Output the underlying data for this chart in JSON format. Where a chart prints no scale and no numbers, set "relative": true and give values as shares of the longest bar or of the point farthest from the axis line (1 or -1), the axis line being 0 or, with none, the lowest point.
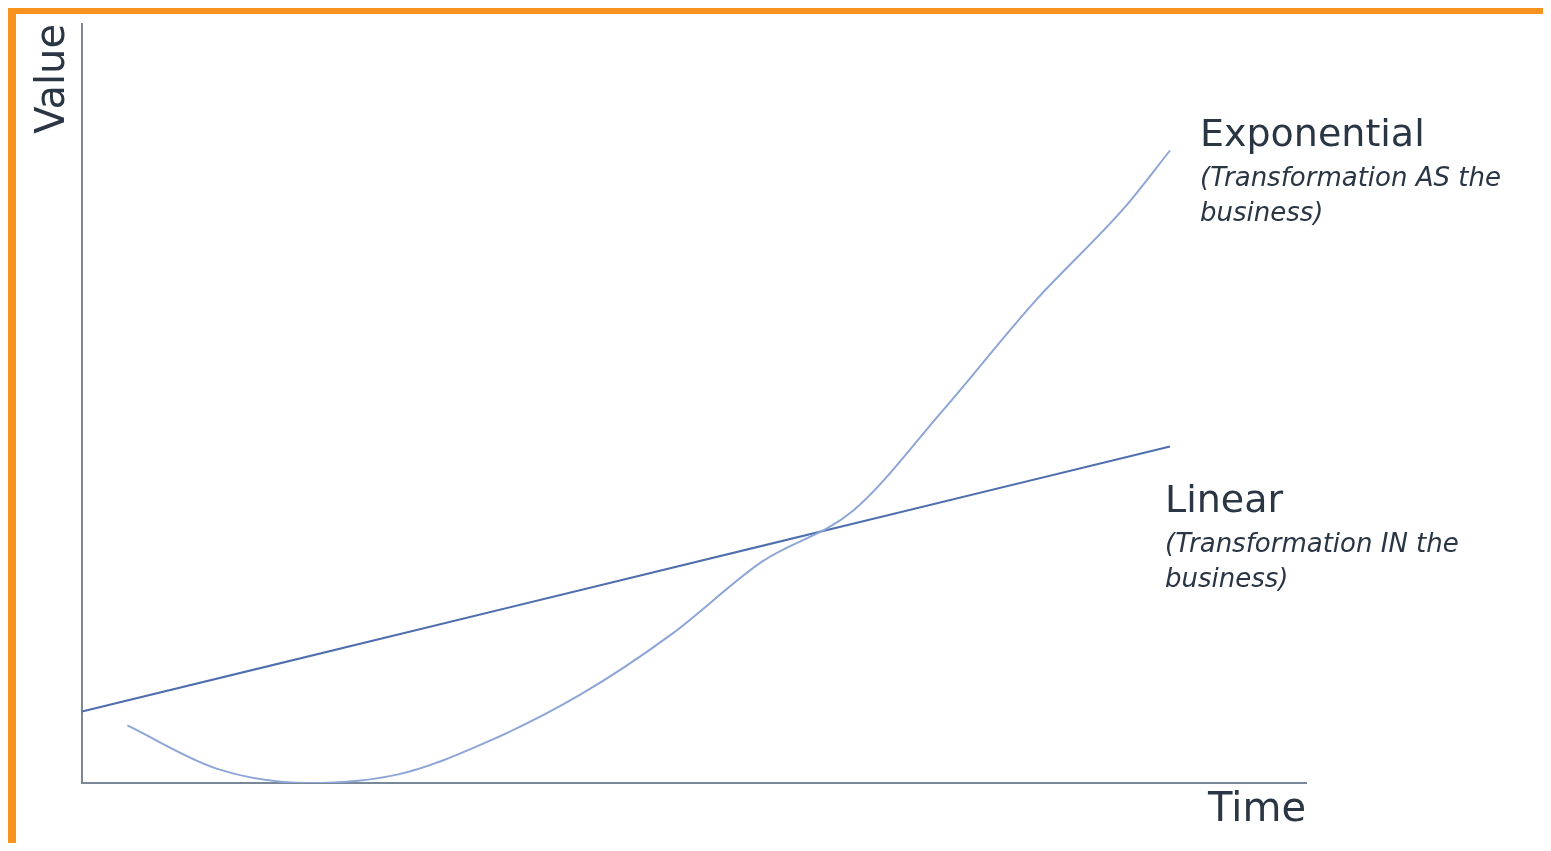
{
  "chart_data": {
    "type": "line",
    "relative": true,
    "xlabel": "Time",
    "ylabel": "Value",
    "categories": [
      null,
      null,
      null,
      null,
      null,
      null,
      null,
      null,
      null,
      null,
      null,
      null,
      null,
      null,
      null,
      null,
      null,
      null,
      null,
      null,
      null,
      null,
      null,
      null,
      null,
      null,
      null,
      null
    ],
    "series": [
      {
        "name": "Exponential",
        "color": "#8ea6d6",
        "values": [
          null,
          0.091,
          null,
          0.022,
          null,
          0,
          null,
          0.014,
          null,
          0.067,
          null,
          0.14,
          null,
          0.235,
          null,
          0.35,
          null,
          0.43,
          null,
          0.59,
          null,
          0.76,
          null,
          0.91,
          1.0,
          null,
          null,
          null
        ]
      },
      {
        "name": "Linear",
        "color": "#4f6ead",
        "values": [
          0.113,
          null,
          null,
          null,
          null,
          null,
          null,
          null,
          null,
          null,
          null,
          null,
          null,
          null,
          null,
          null,
          null,
          null,
          null,
          null,
          null,
          null,
          null,
          null,
          0.532,
          null,
          null,
          null
        ]
      }
    ],
    "annotations": [
      "(Transformation AS the business)",
      "(Transformation IN the business)"
    ],
    "grid": false,
    "legend": false,
    "tick_labels": false,
    "marker": "none",
    "line_style": "solid"
  }
}
